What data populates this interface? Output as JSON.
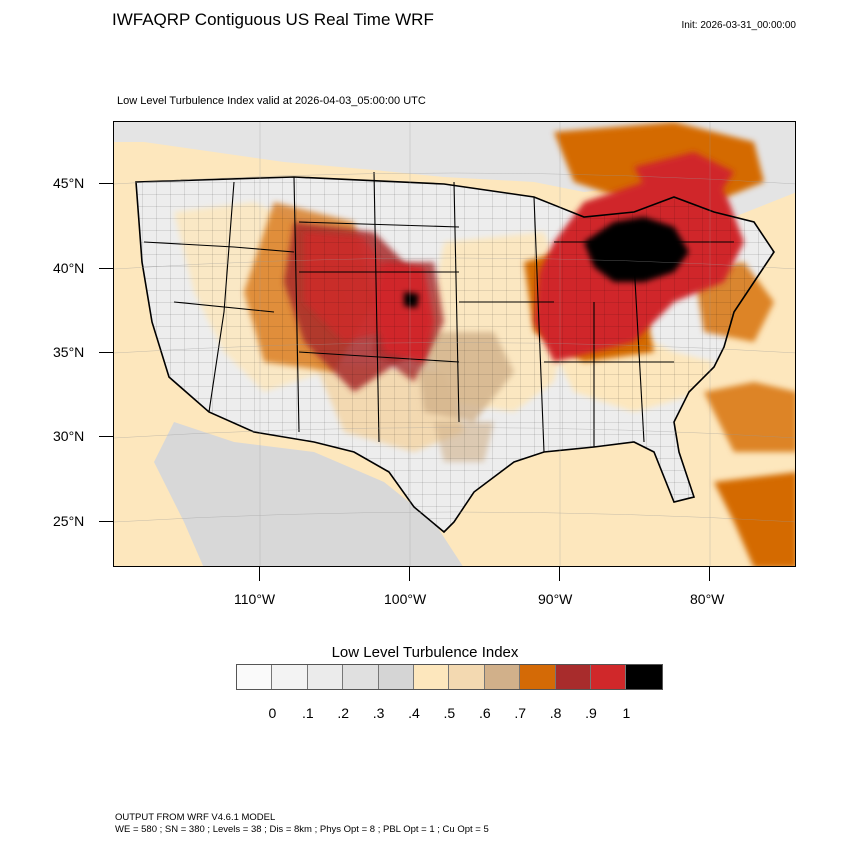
{
  "title": "IWFAQRP Contiguous US Real Time WRF",
  "init": "Init: 2026-03-31_00:00:00",
  "subtitle": "Low Level Turbulence Index valid at 2026-04-03_05:00:00 UTC",
  "map": {
    "lat_labels": [
      "45°N",
      "40°N",
      "35°N",
      "30°N",
      "25°N"
    ],
    "lon_labels": [
      "110°W",
      "100°W",
      "90°W",
      "80°W"
    ],
    "colors": {
      "ocean": "#fde7bd",
      "land_low": "#dcdcdc",
      "high": "#d0282a",
      "very_high": "#000000",
      "medium": "#d46a06"
    }
  },
  "colorbar": {
    "title": "Low Level Turbulence Index",
    "colors": [
      "#fafafa",
      "#f3f3f3",
      "#ebebeb",
      "#e0e0e0",
      "#d5d5d5",
      "#fde7bd",
      "#f3d9b1",
      "#d1b08a",
      "#d46a06",
      "#a82c2c",
      "#d0282a",
      "#000000"
    ],
    "labels": [
      "0",
      ".1",
      ".2",
      ".3",
      ".4",
      ".5",
      ".6",
      ".7",
      ".8",
      ".9",
      "1"
    ]
  },
  "footer": {
    "line1": "OUTPUT FROM WRF V4.6.1 MODEL",
    "line2": "WE = 580 ; SN = 380 ; Levels = 38 ; Dis = 8km ; Phys Opt = 8 ; PBL Opt = 1 ; Cu Opt = 5"
  }
}
